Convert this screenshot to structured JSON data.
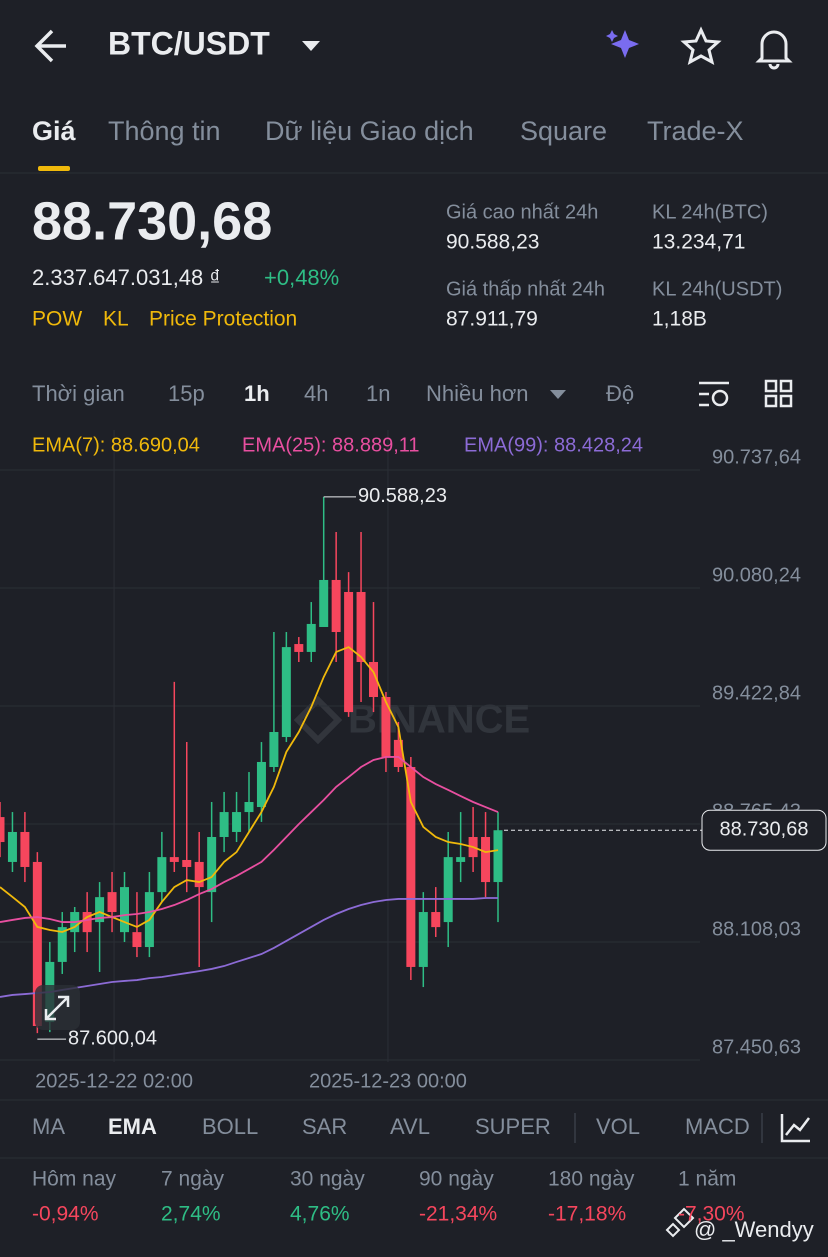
{
  "header": {
    "pair": "BTC/USDT"
  },
  "tabs": [
    "Giá",
    "Thông tin",
    "Dữ liệu Giao dịch",
    "Square",
    "Trade-X"
  ],
  "price": {
    "last": "88.730,68",
    "fiat": "2.337.647.031,48 ₫",
    "change": "+0,48%"
  },
  "tags": [
    "POW",
    "KL",
    "Price Protection"
  ],
  "stats": [
    {
      "label": "Giá cao nhất 24h",
      "value": "90.588,23"
    },
    {
      "label": "KL 24h(BTC)",
      "value": "13.234,71"
    },
    {
      "label": "Giá thấp nhất 24h",
      "value": "87.911,79"
    },
    {
      "label": "KL 24h(USDT)",
      "value": "1,18B"
    }
  ],
  "intervals": [
    "Thời gian",
    "15p",
    "1h",
    "4h",
    "1n",
    "Nhiều hơn",
    "Độ"
  ],
  "chart_data": {
    "type": "candlestick",
    "categories": [
      null,
      null,
      null,
      null,
      null,
      null,
      null,
      null,
      null,
      "2025-12-22 02:00",
      null,
      null,
      null,
      null,
      null,
      null,
      null,
      null,
      null,
      null,
      null,
      null,
      null,
      null,
      null,
      null,
      null,
      null,
      null,
      null,
      null,
      "2025-12-23 00:00",
      null,
      null,
      null,
      null,
      null,
      null,
      null,
      null,
      null
    ],
    "open": [
      88804,
      88554,
      88721,
      88554,
      87662,
      87997,
      88163,
      88275,
      88219,
      88386,
      88163,
      88163,
      88080,
      88386,
      88581,
      88565,
      88554,
      88386,
      88693,
      88721,
      88832,
      88860,
      89083,
      89250,
      89768,
      89724,
      89863,
      90125,
      90058,
      90058,
      89668,
      89473,
      89234,
      89083,
      87969,
      88275,
      88219,
      88554,
      88693,
      88693,
      88442
    ],
    "high": [
      88888,
      88832,
      88832,
      88609,
      88108,
      88275,
      88303,
      88386,
      88442,
      88498,
      88498,
      88386,
      88498,
      88721,
      89557,
      89222,
      88721,
      88888,
      88944,
      88944,
      89055,
      89222,
      89835,
      89835,
      89807,
      90002,
      90588.23,
      90392,
      90169,
      90392,
      90002,
      89501,
      89334,
      89139,
      88386,
      88414,
      88721,
      88832,
      88860,
      88832,
      88832
    ],
    "low": [
      88581,
      88498,
      88442,
      87600.04,
      87606,
      87930,
      88052,
      88052,
      87941,
      88163,
      88108,
      88024,
      88024,
      88330,
      88498,
      88386,
      87969,
      88219,
      88609,
      88665,
      88721,
      88777,
      89055,
      89222,
      89668,
      89668,
      89863,
      89668,
      89362,
      89445,
      89389,
      89055,
      89055,
      87896,
      87857,
      88136,
      88080,
      88442,
      88498,
      88358,
      88219
    ],
    "close": [
      88665,
      88721,
      88526,
      87640,
      87997,
      88191,
      88275,
      88163,
      88358,
      88275,
      88414,
      88080,
      88386,
      88581,
      88554,
      88526,
      88414,
      88693,
      88832,
      88832,
      88888,
      89111,
      89278,
      89751,
      89724,
      89880,
      90125,
      89835,
      89389,
      89668,
      89473,
      89139,
      89083,
      87969,
      88275,
      88191,
      88581,
      88581,
      88581,
      88442,
      88730.68
    ],
    "up_color": "#2ebd85",
    "down_color": "#f6465d",
    "series": [
      {
        "name": "EMA(7): 88.690,04",
        "color": "#f0b90b",
        "values": [
          88414,
          88359,
          88303,
          88192,
          88175,
          88164,
          88192,
          88247,
          88275,
          88247,
          88219,
          88192,
          88231,
          88331,
          88414,
          88453,
          88442,
          88470,
          88554,
          88609,
          88721,
          88832,
          88972,
          89167,
          89278,
          89417,
          89584,
          89724,
          89751,
          89696,
          89612,
          89445,
          89306,
          88888,
          88749,
          88693,
          88665,
          88654,
          88637,
          88609,
          88620
        ]
      },
      {
        "name": "EMA(25): 88.889,11",
        "color": "#e84fa0",
        "values": [
          88219,
          88231,
          88242,
          88247,
          88236,
          88219,
          88219,
          88231,
          88242,
          88247,
          88258,
          88264,
          88275,
          88292,
          88314,
          88342,
          88375,
          88403,
          88442,
          88476,
          88515,
          88554,
          88621,
          88693,
          88765,
          88832,
          88899,
          88972,
          89027,
          89083,
          89122,
          89139,
          89139,
          89083,
          89027,
          88988,
          88955,
          88921,
          88888,
          88860,
          88832
        ]
      },
      {
        "name": "EMA(99): 88.428,24",
        "color": "#8c6bd6",
        "values": [
          87802,
          87813,
          87818,
          87824,
          87829,
          87841,
          87852,
          87863,
          87874,
          87885,
          87891,
          87896,
          87907,
          87913,
          87924,
          87935,
          87946,
          87958,
          87974,
          87997,
          88019,
          88041,
          88075,
          88114,
          88153,
          88192,
          88231,
          88264,
          88292,
          88314,
          88331,
          88342,
          88348,
          88348,
          88348,
          88348,
          88348,
          88348,
          88348,
          88353,
          88353
        ]
      }
    ],
    "ylim": [
      87450.63,
      90737.64
    ],
    "yticks": [
      {
        "value": 90737.64,
        "label": "90.737,64"
      },
      {
        "value": 90080.24,
        "label": "90.080,24"
      },
      {
        "value": 89422.84,
        "label": "89.422,84"
      },
      {
        "value": 88765.43,
        "label": "88.765,43"
      },
      {
        "value": 88108.03,
        "label": "88.108,03"
      },
      {
        "value": 87450.63,
        "label": "87.450,63"
      }
    ],
    "grid": true,
    "high_label": {
      "value": 90588.23,
      "label": "90.588,23"
    },
    "low_label": {
      "value": 87600.04,
      "label": "87.600,04"
    },
    "current": {
      "value": 88730.68,
      "label": "88.730,68"
    },
    "watermark": "BINANCE"
  },
  "indicators": [
    "MA",
    "EMA",
    "BOLL",
    "SAR",
    "AVL",
    "SUPER",
    "VOL",
    "MACD"
  ],
  "performance": [
    {
      "label": "Hôm nay",
      "value": "-0,94%"
    },
    {
      "label": "7 ngày",
      "value": "2,74%"
    },
    {
      "label": "30 ngày",
      "value": "4,76%"
    },
    {
      "label": "90 ngày",
      "value": "-21,34%"
    },
    {
      "label": "180 ngày",
      "value": "-17,18%"
    },
    {
      "label": "1 năm",
      "value": "-7,30%"
    }
  ],
  "credit": "@ _Wendyy"
}
